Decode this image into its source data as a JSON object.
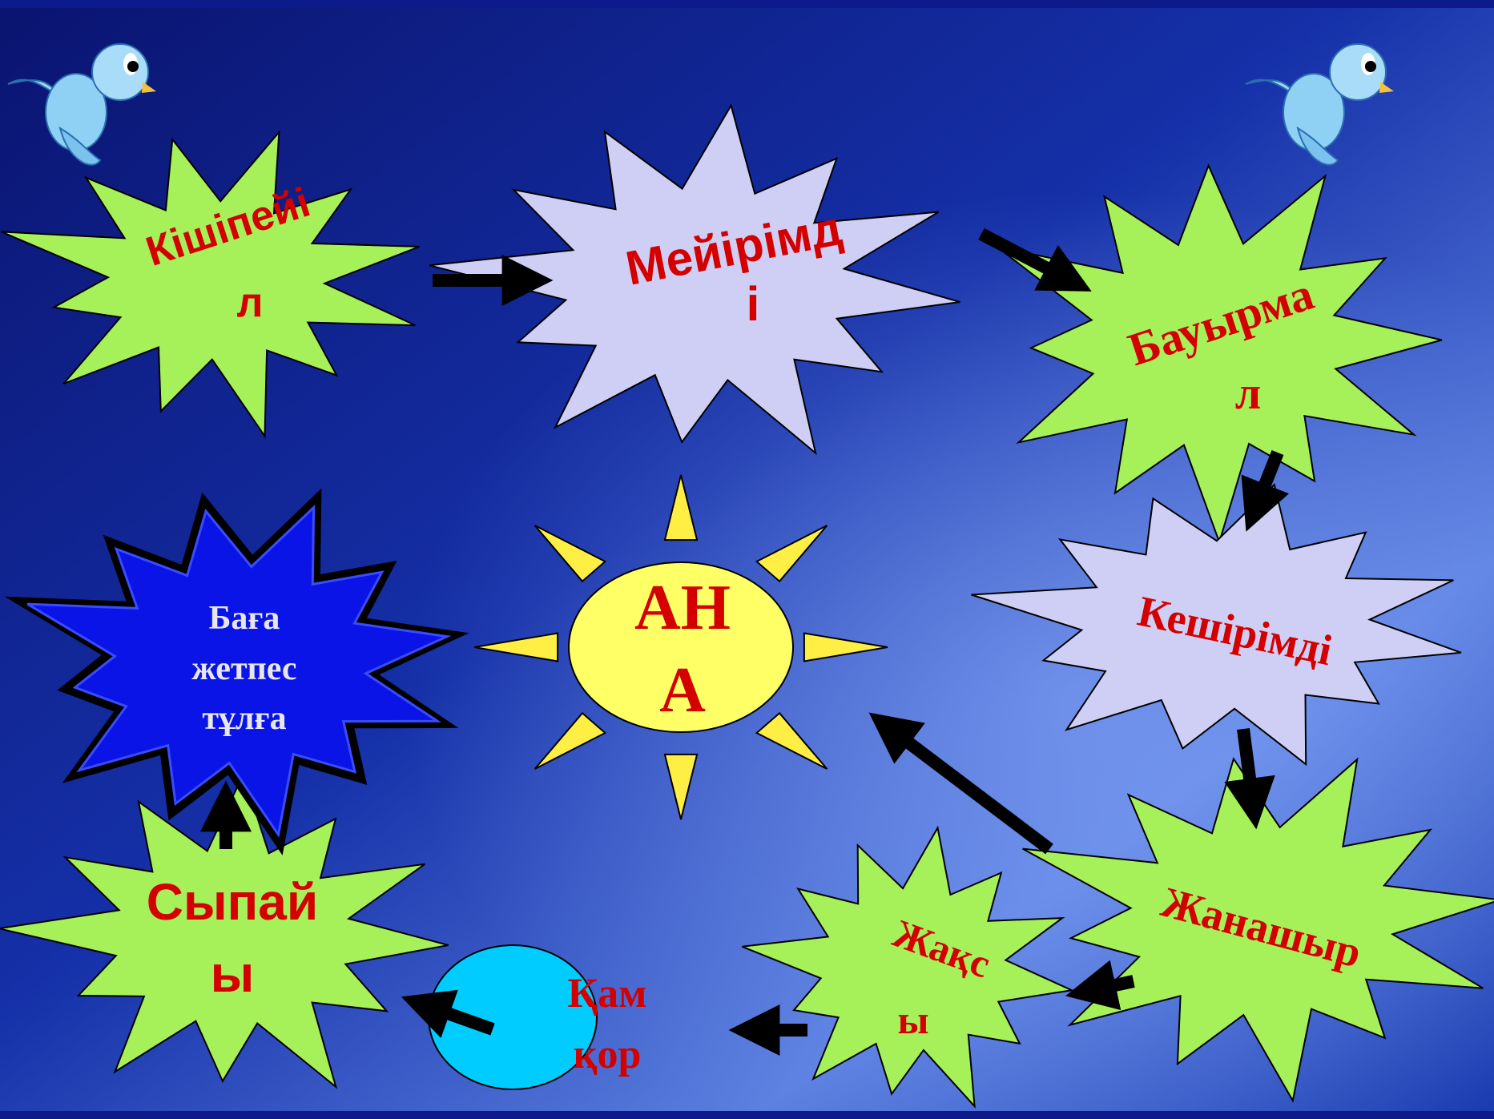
{
  "colors": {
    "background_deep": "#0a1470",
    "background_light": "#5a7fe0",
    "burst_green": "#a6f05a",
    "burst_lavender": "#cfcff5",
    "burst_blue": "#0a14e6",
    "label_red": "#d40000",
    "label_white": "#e6e6f0",
    "sun_yellow": "#ffff66",
    "sun_ray": "#ffee44",
    "bubble_cyan": "#00ccff",
    "arrow": "#000000"
  },
  "center": {
    "line1": "АН",
    "line2": "А"
  },
  "bursts": {
    "kishipeyil": {
      "line1": "Кішіпейі",
      "line2": "л"
    },
    "meyirimdi": {
      "line1": "Мейірімд",
      "line2": "і"
    },
    "bauyrmal": {
      "line1": "Бауырма",
      "line2": "л"
    },
    "keshirimdi": {
      "line1": "Кешірімді"
    },
    "zhanashyr": {
      "line1": "Жанашыр"
    },
    "zhaksy": {
      "line1": "Жақс",
      "line2": "ы"
    },
    "sypayy": {
      "line1": "Сыпай",
      "line2": "ы"
    },
    "baga": {
      "line1": "Баға",
      "line2": "жетпес",
      "line3": "тұлға"
    }
  },
  "bubble": {
    "line1": "Қам",
    "line2": "қор"
  },
  "decorations": [
    "bird-icon",
    "bird-icon"
  ]
}
